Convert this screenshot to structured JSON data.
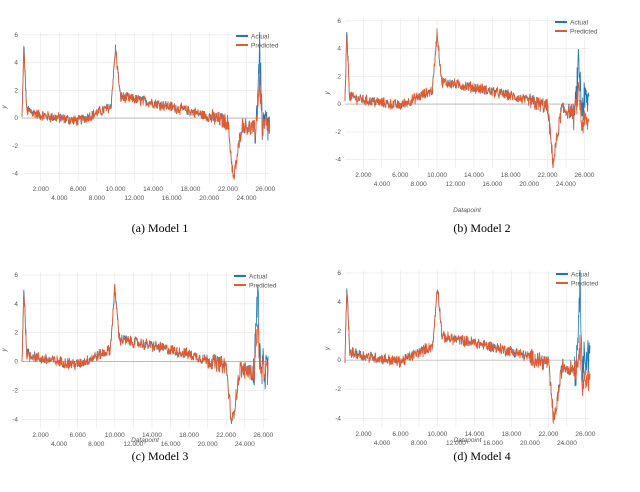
{
  "colors": {
    "actual": "#1f77b4",
    "predicted": "#e8592a",
    "grid": "#e6e6e6",
    "zero_line": "#999999"
  },
  "chart_data": [
    {
      "type": "line",
      "caption": "(a) Model 1",
      "xlabel": "",
      "ylabel": "y",
      "xlim": [
        0,
        26500
      ],
      "ylim": [
        -4.6,
        6.2
      ],
      "x_ticks_upper": [
        "2.000",
        "6.000",
        "10.000",
        "14.000",
        "18.000",
        "22.000",
        "26.000"
      ],
      "x_ticks_lower": [
        "4.000",
        "8.000",
        "12.000",
        "16.000",
        "20.000",
        "24.000"
      ],
      "y_ticks": [
        "6",
        "4",
        "2",
        "0",
        "-2",
        "-4"
      ],
      "legend": {
        "position": "top-right",
        "entries": [
          "Actual",
          "Predicted"
        ]
      },
      "series": [
        {
          "name": "Actual",
          "points": [
            [
              0,
              0
            ],
            [
              200,
              5.3
            ],
            [
              500,
              0.6
            ],
            [
              2000,
              0.2
            ],
            [
              6000,
              -0.2
            ],
            [
              9500,
              0.8
            ],
            [
              10000,
              5.1
            ],
            [
              10500,
              1.6
            ],
            [
              14000,
              1.1
            ],
            [
              18000,
              0.5
            ],
            [
              22000,
              -0.3
            ],
            [
              22600,
              -4.5
            ],
            [
              23500,
              -0.5
            ],
            [
              25000,
              -0.8
            ],
            [
              25400,
              5.2
            ],
            [
              25700,
              -1.2
            ],
            [
              26000,
              -0.4
            ],
            [
              26400,
              -0.7
            ]
          ]
        },
        {
          "name": "Predicted",
          "points": [
            [
              0,
              0
            ],
            [
              200,
              5.0
            ],
            [
              500,
              0.5
            ],
            [
              2000,
              0.2
            ],
            [
              6000,
              -0.2
            ],
            [
              9500,
              0.8
            ],
            [
              10000,
              5.0
            ],
            [
              10500,
              1.5
            ],
            [
              14000,
              1.1
            ],
            [
              18000,
              0.5
            ],
            [
              22000,
              -0.3
            ],
            [
              22600,
              -4.5
            ],
            [
              23500,
              -0.5
            ],
            [
              25000,
              -0.8
            ],
            [
              25400,
              2.8
            ],
            [
              25700,
              -1.2
            ],
            [
              26000,
              -0.4
            ],
            [
              26400,
              -0.7
            ]
          ]
        }
      ]
    },
    {
      "type": "line",
      "caption": "(b) Model 2",
      "xlabel": "Datapoint",
      "ylabel": "y",
      "xlim": [
        0,
        26500
      ],
      "ylim": [
        -4.6,
        6.2
      ],
      "x_ticks_upper": [
        "2.000",
        "6.000",
        "10.000",
        "14.000",
        "18.000",
        "22.000",
        "26.000"
      ],
      "x_ticks_lower": [
        "4.000",
        "8.000",
        "12.000",
        "16.000",
        "20.000",
        "24.000"
      ],
      "y_ticks": [
        "6",
        "4",
        "2",
        "0",
        "-2",
        "-4"
      ],
      "legend": {
        "position": "top-right",
        "entries": [
          "Actual",
          "Predicted"
        ]
      },
      "series": [
        {
          "name": "Actual",
          "points": [
            [
              0,
              0
            ],
            [
              200,
              5.3
            ],
            [
              500,
              0.6
            ],
            [
              2000,
              0.3
            ],
            [
              6000,
              -0.1
            ],
            [
              9500,
              1.0
            ],
            [
              10000,
              5.2
            ],
            [
              10500,
              1.6
            ],
            [
              14000,
              1.2
            ],
            [
              18000,
              0.6
            ],
            [
              22000,
              -0.2
            ],
            [
              22600,
              -4.3
            ],
            [
              23500,
              -0.4
            ],
            [
              25000,
              -0.6
            ],
            [
              25400,
              3.0
            ],
            [
              25700,
              -0.2
            ],
            [
              26000,
              0.2
            ],
            [
              26400,
              0.3
            ]
          ]
        },
        {
          "name": "Predicted",
          "points": [
            [
              0,
              0
            ],
            [
              200,
              5.0
            ],
            [
              500,
              0.5
            ],
            [
              2000,
              0.3
            ],
            [
              6000,
              -0.1
            ],
            [
              9500,
              1.0
            ],
            [
              10000,
              5.2
            ],
            [
              10500,
              1.6
            ],
            [
              14000,
              1.2
            ],
            [
              18000,
              0.6
            ],
            [
              22000,
              -0.2
            ],
            [
              22600,
              -4.3
            ],
            [
              23500,
              -0.4
            ],
            [
              25000,
              -0.6
            ],
            [
              25400,
              1.0
            ],
            [
              25700,
              -1.6
            ],
            [
              26000,
              -1.2
            ],
            [
              26400,
              -1.4
            ]
          ]
        }
      ]
    },
    {
      "type": "line",
      "caption": "(c) Model 3",
      "xlabel": "Datapoint",
      "ylabel": "y",
      "xlim": [
        0,
        26500
      ],
      "ylim": [
        -4.6,
        6.2
      ],
      "x_ticks_upper": [
        "2.000",
        "6.000",
        "10.000",
        "14.000",
        "18.000",
        "22.000",
        "26.000"
      ],
      "x_ticks_lower": [
        "4.000",
        "8.000",
        "12.000",
        "16.000",
        "20.000",
        "24.000"
      ],
      "y_ticks": [
        "6",
        "4",
        "2",
        "0",
        "-2",
        "-4"
      ],
      "legend": {
        "position": "top-right",
        "entries": [
          "Actual",
          "Predicted"
        ]
      },
      "series": [
        {
          "name": "Actual",
          "points": [
            [
              0,
              0
            ],
            [
              200,
              5.3
            ],
            [
              500,
              0.6
            ],
            [
              2000,
              0.2
            ],
            [
              6000,
              -0.2
            ],
            [
              9500,
              0.8
            ],
            [
              10000,
              5.1
            ],
            [
              10500,
              1.6
            ],
            [
              14000,
              1.1
            ],
            [
              18000,
              0.5
            ],
            [
              22000,
              -0.3
            ],
            [
              22600,
              -4.4
            ],
            [
              23500,
              -0.5
            ],
            [
              25000,
              -0.8
            ],
            [
              25400,
              5.2
            ],
            [
              25700,
              -1.2
            ],
            [
              26000,
              -0.4
            ],
            [
              26400,
              -0.7
            ]
          ]
        },
        {
          "name": "Predicted",
          "points": [
            [
              0,
              0
            ],
            [
              200,
              5.0
            ],
            [
              500,
              0.5
            ],
            [
              2000,
              0.2
            ],
            [
              6000,
              -0.2
            ],
            [
              9500,
              0.8
            ],
            [
              10000,
              5.0
            ],
            [
              10500,
              1.5
            ],
            [
              14000,
              1.1
            ],
            [
              18000,
              0.5
            ],
            [
              22000,
              -0.3
            ],
            [
              22600,
              -4.4
            ],
            [
              23500,
              -0.5
            ],
            [
              25000,
              -0.8
            ],
            [
              25400,
              2.6
            ],
            [
              25700,
              -1.2
            ],
            [
              26000,
              -0.4
            ],
            [
              26400,
              -0.7
            ]
          ]
        }
      ]
    },
    {
      "type": "line",
      "caption": "(d) Model 4",
      "xlabel": "Datapoint",
      "ylabel": "y",
      "xlim": [
        0,
        26500
      ],
      "ylim": [
        -4.6,
        6.2
      ],
      "x_ticks_upper": [
        "2.000",
        "6.000",
        "10.000",
        "14.000",
        "18.000",
        "22.000",
        "26.000"
      ],
      "x_ticks_lower": [
        "4.000",
        "8.000",
        "12.000",
        "16.000",
        "20.000",
        "24.000"
      ],
      "y_ticks": [
        "6",
        "4",
        "2",
        "0",
        "-2",
        "-4"
      ],
      "legend": {
        "position": "top-right",
        "entries": [
          "Actual",
          "Predicted"
        ]
      },
      "series": [
        {
          "name": "Actual",
          "points": [
            [
              0,
              0
            ],
            [
              200,
              5.3
            ],
            [
              500,
              0.6
            ],
            [
              2000,
              0.3
            ],
            [
              6000,
              -0.1
            ],
            [
              9500,
              1.0
            ],
            [
              10000,
              5.2
            ],
            [
              10500,
              1.6
            ],
            [
              14000,
              1.2
            ],
            [
              18000,
              0.6
            ],
            [
              22000,
              -0.2
            ],
            [
              22600,
              -4.3
            ],
            [
              23500,
              -0.4
            ],
            [
              25000,
              -0.6
            ],
            [
              25400,
              5.2
            ],
            [
              25700,
              -0.2
            ],
            [
              26000,
              0.2
            ],
            [
              26400,
              0.3
            ]
          ]
        },
        {
          "name": "Predicted",
          "points": [
            [
              0,
              0
            ],
            [
              200,
              5.0
            ],
            [
              500,
              0.5
            ],
            [
              2000,
              0.3
            ],
            [
              6000,
              -0.1
            ],
            [
              9500,
              1.0
            ],
            [
              10000,
              5.2
            ],
            [
              10500,
              1.6
            ],
            [
              14000,
              1.2
            ],
            [
              18000,
              0.6
            ],
            [
              22000,
              -0.2
            ],
            [
              22600,
              -4.3
            ],
            [
              23500,
              -0.4
            ],
            [
              25000,
              -0.6
            ],
            [
              25400,
              1.0
            ],
            [
              25700,
              -1.6
            ],
            [
              26000,
              -1.2
            ],
            [
              26400,
              -1.4
            ]
          ]
        }
      ]
    }
  ]
}
